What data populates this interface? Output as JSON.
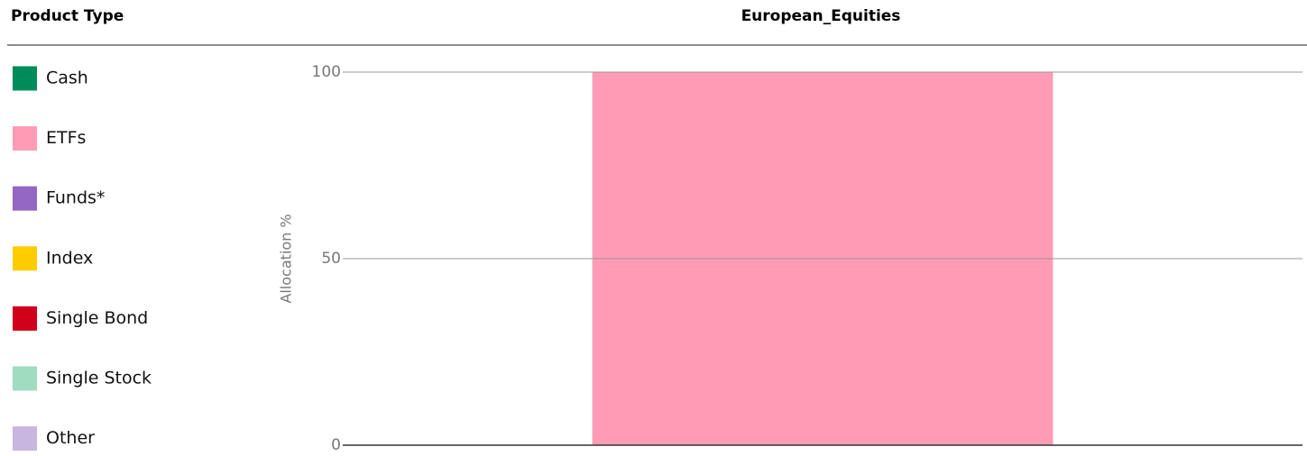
{
  "chart_data": {
    "type": "stacked_bar",
    "title": "European_Equities",
    "legend_title": "Product Type",
    "y_label": "Allocation %",
    "categories": [
      null
    ],
    "series": [
      {
        "name": "Cash",
        "color": "#008c5a",
        "values": [
          0
        ]
      },
      {
        "name": "ETFs",
        "color": "#ff9bb5",
        "values": [
          100
        ]
      },
      {
        "name": "Funds*",
        "color": "#9467c4",
        "values": [
          0
        ]
      },
      {
        "name": "Index",
        "color": "#ffcc00",
        "values": [
          0
        ]
      },
      {
        "name": "Single Bond",
        "color": "#d0021b",
        "values": [
          0
        ]
      },
      {
        "name": "Single Stock",
        "color": "#a0dcc0",
        "values": [
          0
        ]
      },
      {
        "name": "Other",
        "color": "#c9b6e0",
        "values": [
          0
        ]
      }
    ],
    "ylim": [
      0,
      100
    ],
    "yticks": [
      0,
      50,
      100
    ],
    "grid": true,
    "legend": "left"
  }
}
